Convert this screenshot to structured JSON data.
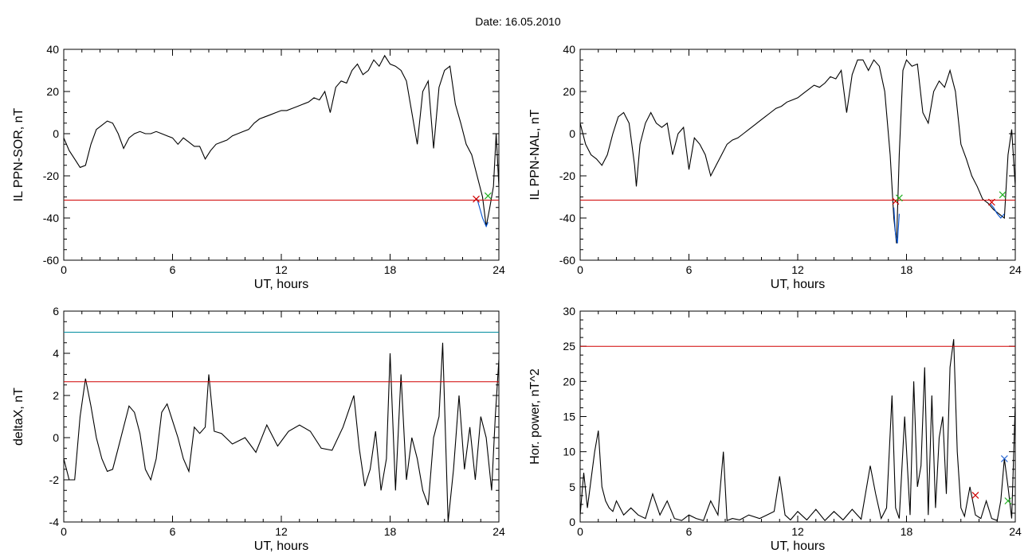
{
  "header": {
    "title": "Date:  16.05.2010"
  },
  "chart_data": [
    {
      "id": "p1",
      "type": "line",
      "ylabel": "IL PPN-SOR, nT",
      "xlabel": "UT, hours",
      "xlim": [
        0,
        24
      ],
      "ylim": [
        -60,
        40
      ],
      "xticks": [
        0,
        6,
        12,
        18,
        24
      ],
      "yticks": [
        -60,
        -40,
        -20,
        0,
        20,
        40
      ],
      "series": [
        {
          "color": "#000000",
          "x": [
            0,
            0.3,
            0.6,
            0.9,
            1.2,
            1.5,
            1.8,
            2.1,
            2.4,
            2.7,
            3.0,
            3.3,
            3.6,
            3.9,
            4.2,
            4.5,
            4.8,
            5.1,
            5.4,
            5.7,
            6.0,
            6.3,
            6.6,
            6.9,
            7.2,
            7.5,
            7.8,
            8.1,
            8.4,
            8.7,
            9.0,
            9.3,
            9.6,
            9.9,
            10.2,
            10.5,
            10.8,
            11.1,
            11.4,
            11.7,
            12.0,
            12.3,
            12.6,
            12.9,
            13.2,
            13.5,
            13.8,
            14.1,
            14.4,
            14.7,
            15.0,
            15.3,
            15.6,
            15.9,
            16.2,
            16.5,
            16.8,
            17.1,
            17.4,
            17.7,
            18.0,
            18.3,
            18.6,
            18.9,
            19.2,
            19.5,
            19.8,
            20.1,
            20.4,
            20.7,
            21.0,
            21.3,
            21.6,
            21.9,
            22.2,
            22.5,
            22.8,
            23.1,
            23.3,
            23.5,
            23.7,
            23.85,
            24
          ],
          "y": [
            -2,
            -8,
            -12,
            -16,
            -15,
            -5,
            2,
            4,
            6,
            5,
            0,
            -7,
            -2,
            0,
            1,
            0,
            0,
            1,
            0,
            -1,
            -2,
            -5,
            -2,
            -4,
            -6,
            -6,
            -12,
            -8,
            -5,
            -4,
            -3,
            -1,
            0,
            1,
            2,
            5,
            7,
            8,
            9,
            10,
            11,
            11,
            12,
            13,
            14,
            15,
            17,
            16,
            20,
            10,
            22,
            25,
            24,
            30,
            33,
            28,
            30,
            35,
            32,
            37,
            33,
            32,
            30,
            25,
            10,
            -5,
            20,
            25,
            -7,
            22,
            30,
            32,
            14,
            5,
            -5,
            -10,
            -20,
            -30,
            -44,
            -35,
            -25,
            0,
            -25
          ]
        },
        {
          "color": "#0050d0",
          "x": [
            22.8,
            22.9,
            23.0,
            23.1,
            23.2,
            23.3,
            23.4
          ],
          "y": [
            -31,
            -34,
            -37,
            -40,
            -42,
            -44,
            -42
          ]
        },
        {
          "color": "#d00000",
          "x": [
            0,
            24
          ],
          "y": [
            -31.5,
            -31.5
          ]
        }
      ],
      "markers": [
        {
          "color": "#d00000",
          "x": 22.75,
          "y": -31
        },
        {
          "color": "#20b020",
          "x": 23.4,
          "y": -29.5
        }
      ]
    },
    {
      "id": "p2",
      "type": "line",
      "ylabel": "IL PPN-NAL, nT",
      "xlabel": "UT, hours",
      "xlim": [
        0,
        24
      ],
      "ylim": [
        -60,
        40
      ],
      "xticks": [
        0,
        6,
        12,
        18,
        24
      ],
      "yticks": [
        -60,
        -40,
        -20,
        0,
        20,
        40
      ],
      "series": [
        {
          "color": "#000000",
          "x": [
            0,
            0.3,
            0.6,
            0.9,
            1.2,
            1.5,
            1.8,
            2.1,
            2.4,
            2.7,
            3.0,
            3.1,
            3.3,
            3.6,
            3.9,
            4.2,
            4.5,
            4.8,
            5.1,
            5.4,
            5.7,
            6.0,
            6.3,
            6.6,
            6.9,
            7.2,
            7.5,
            7.8,
            8.1,
            8.4,
            8.7,
            9.0,
            9.3,
            9.6,
            9.9,
            10.2,
            10.5,
            10.8,
            11.1,
            11.4,
            11.7,
            12.0,
            12.3,
            12.6,
            12.9,
            13.2,
            13.5,
            13.8,
            14.1,
            14.4,
            14.7,
            15.0,
            15.3,
            15.6,
            15.9,
            16.2,
            16.5,
            16.8,
            17.1,
            17.3,
            17.45,
            17.6,
            17.8,
            18.0,
            18.3,
            18.6,
            18.9,
            19.2,
            19.5,
            19.8,
            20.1,
            20.4,
            20.7,
            21.0,
            21.3,
            21.6,
            21.9,
            22.2,
            22.5,
            22.8,
            23.1,
            23.4,
            23.6,
            23.8,
            24
          ],
          "y": [
            5,
            -5,
            -10,
            -12,
            -15,
            -10,
            0,
            8,
            10,
            5,
            -15,
            -25,
            -5,
            5,
            10,
            5,
            3,
            5,
            -10,
            0,
            3,
            -17,
            -2,
            -5,
            -10,
            -20,
            -15,
            -10,
            -5,
            -3,
            -2,
            0,
            2,
            4,
            6,
            8,
            10,
            12,
            13,
            15,
            16,
            17,
            19,
            21,
            23,
            22,
            24,
            27,
            26,
            30,
            10,
            28,
            35,
            35,
            30,
            35,
            32,
            20,
            -10,
            -40,
            -52,
            -10,
            30,
            35,
            32,
            33,
            10,
            5,
            20,
            25,
            22,
            30,
            20,
            -5,
            -12,
            -20,
            -25,
            -31,
            -33,
            -36,
            -38,
            -40,
            -10,
            2,
            -25
          ]
        },
        {
          "color": "#0050d0",
          "x": [
            17.3,
            17.4,
            17.5,
            17.6
          ],
          "y": [
            -35,
            -48,
            -52,
            -38
          ]
        },
        {
          "color": "#0050d0",
          "x": [
            22.6,
            22.8,
            23.0,
            23.2,
            23.4
          ],
          "y": [
            -33,
            -35,
            -38,
            -40,
            -38
          ]
        },
        {
          "color": "#d00000",
          "x": [
            0,
            24
          ],
          "y": [
            -31.5,
            -31.5
          ]
        }
      ],
      "markers": [
        {
          "color": "#d00000",
          "x": 17.4,
          "y": -32
        },
        {
          "color": "#20b020",
          "x": 17.6,
          "y": -30.5
        },
        {
          "color": "#d00000",
          "x": 22.7,
          "y": -32.5
        },
        {
          "color": "#20b020",
          "x": 23.3,
          "y": -29
        }
      ]
    },
    {
      "id": "p3",
      "type": "line",
      "ylabel": "deltaX, nT",
      "xlabel": "UT, hours",
      "xlim": [
        0,
        24
      ],
      "ylim": [
        -4,
        6
      ],
      "xticks": [
        0,
        6,
        12,
        18,
        24
      ],
      "yticks": [
        -4,
        -2,
        0,
        2,
        4,
        6
      ],
      "series": [
        {
          "color": "#000000",
          "x": [
            0,
            0.3,
            0.6,
            0.9,
            1.2,
            1.5,
            1.8,
            2.1,
            2.4,
            2.7,
            3.0,
            3.3,
            3.6,
            3.9,
            4.2,
            4.5,
            4.8,
            5.1,
            5.4,
            5.7,
            6.0,
            6.3,
            6.6,
            6.9,
            7.2,
            7.5,
            7.8,
            8.0,
            8.3,
            8.7,
            9.3,
            10.0,
            10.6,
            11.2,
            11.8,
            12.4,
            13.0,
            13.6,
            14.2,
            14.8,
            15.4,
            16.0,
            16.3,
            16.6,
            16.9,
            17.2,
            17.5,
            17.8,
            18.0,
            18.3,
            18.6,
            18.9,
            19.2,
            19.5,
            19.8,
            20.1,
            20.4,
            20.7,
            20.9,
            21.2,
            21.5,
            21.8,
            22.1,
            22.4,
            22.7,
            23.0,
            23.3,
            23.6,
            23.8,
            24
          ],
          "y": [
            -1,
            -2,
            -2,
            1,
            2.8,
            1.5,
            0,
            -1,
            -1.6,
            -1.5,
            -0.5,
            0.5,
            1.5,
            1.2,
            0.2,
            -1.5,
            -2,
            -1,
            1.2,
            1.6,
            0.8,
            0,
            -1,
            -1.6,
            0.5,
            0.2,
            0.5,
            3,
            0.3,
            0.2,
            -0.3,
            0,
            -0.7,
            0.6,
            -0.4,
            0.3,
            0.6,
            0.3,
            -0.5,
            -0.6,
            0.5,
            2,
            -0.5,
            -2.3,
            -1.5,
            0.3,
            -2.5,
            -1,
            4,
            -2.5,
            3,
            -2,
            0,
            -1,
            -2.5,
            -3.2,
            0,
            1,
            4.5,
            -4,
            -1.5,
            2,
            -1.5,
            0.5,
            -2,
            1,
            0,
            -2.5,
            1,
            3.7
          ]
        },
        {
          "color": "#d00000",
          "x": [
            0,
            24
          ],
          "y": [
            2.65,
            2.65
          ]
        },
        {
          "color": "#008c9e",
          "x": [
            0,
            24
          ],
          "y": [
            5,
            5
          ]
        }
      ],
      "markers": []
    },
    {
      "id": "p4",
      "type": "line",
      "ylabel": "Hor. power, nT^2",
      "xlabel": "UT, hours",
      "xlim": [
        0,
        24
      ],
      "ylim": [
        0,
        30
      ],
      "xticks": [
        0,
        6,
        12,
        18,
        24
      ],
      "yticks": [
        0,
        5,
        10,
        15,
        20,
        25,
        30
      ],
      "series": [
        {
          "color": "#000000",
          "x": [
            0,
            0.2,
            0.4,
            0.6,
            0.8,
            1.0,
            1.2,
            1.4,
            1.6,
            1.8,
            2.0,
            2.4,
            2.8,
            3.2,
            3.6,
            4.0,
            4.4,
            4.8,
            5.2,
            5.6,
            6.0,
            6.4,
            6.8,
            7.2,
            7.6,
            7.9,
            8.1,
            8.4,
            8.8,
            9.3,
            9.9,
            10.3,
            10.7,
            11.0,
            11.3,
            11.6,
            12.0,
            12.5,
            13.0,
            13.5,
            14.0,
            14.5,
            15.0,
            15.5,
            16.0,
            16.3,
            16.6,
            16.9,
            17.2,
            17.4,
            17.6,
            17.9,
            18.2,
            18.4,
            18.6,
            18.8,
            19.0,
            19.2,
            19.4,
            19.6,
            19.8,
            20.0,
            20.2,
            20.4,
            20.6,
            20.8,
            21.0,
            21.2,
            21.5,
            21.8,
            22.1,
            22.4,
            22.7,
            23.0,
            23.2,
            23.4,
            23.6,
            23.8,
            24
          ],
          "y": [
            1,
            7,
            2,
            6,
            10,
            13,
            5,
            3,
            2,
            1.5,
            3,
            1,
            2,
            1,
            0.5,
            4,
            1,
            3,
            0.5,
            0.2,
            1,
            0.5,
            0.2,
            3,
            1,
            10,
            0.2,
            0.5,
            0.3,
            1,
            0.5,
            1,
            1.5,
            6.5,
            1,
            0.3,
            1.5,
            0.3,
            1.8,
            0.2,
            1.5,
            0.3,
            1.8,
            0.4,
            8,
            4,
            0.5,
            2,
            18,
            2,
            0.5,
            15,
            1,
            20,
            5,
            8,
            22,
            1,
            18,
            2,
            12,
            15,
            4,
            22,
            26,
            10,
            2,
            0.8,
            5,
            1,
            0.5,
            3,
            0.5,
            0.2,
            3,
            9,
            5,
            0.5,
            17
          ]
        },
        {
          "color": "#d00000",
          "x": [
            0,
            24
          ],
          "y": [
            25,
            25
          ]
        }
      ],
      "markers": [
        {
          "color": "#d00000",
          "x": 21.8,
          "y": 3.8
        },
        {
          "color": "#2060d0",
          "x": 23.4,
          "y": 9
        },
        {
          "color": "#20b020",
          "x": 23.6,
          "y": 3
        }
      ]
    }
  ]
}
